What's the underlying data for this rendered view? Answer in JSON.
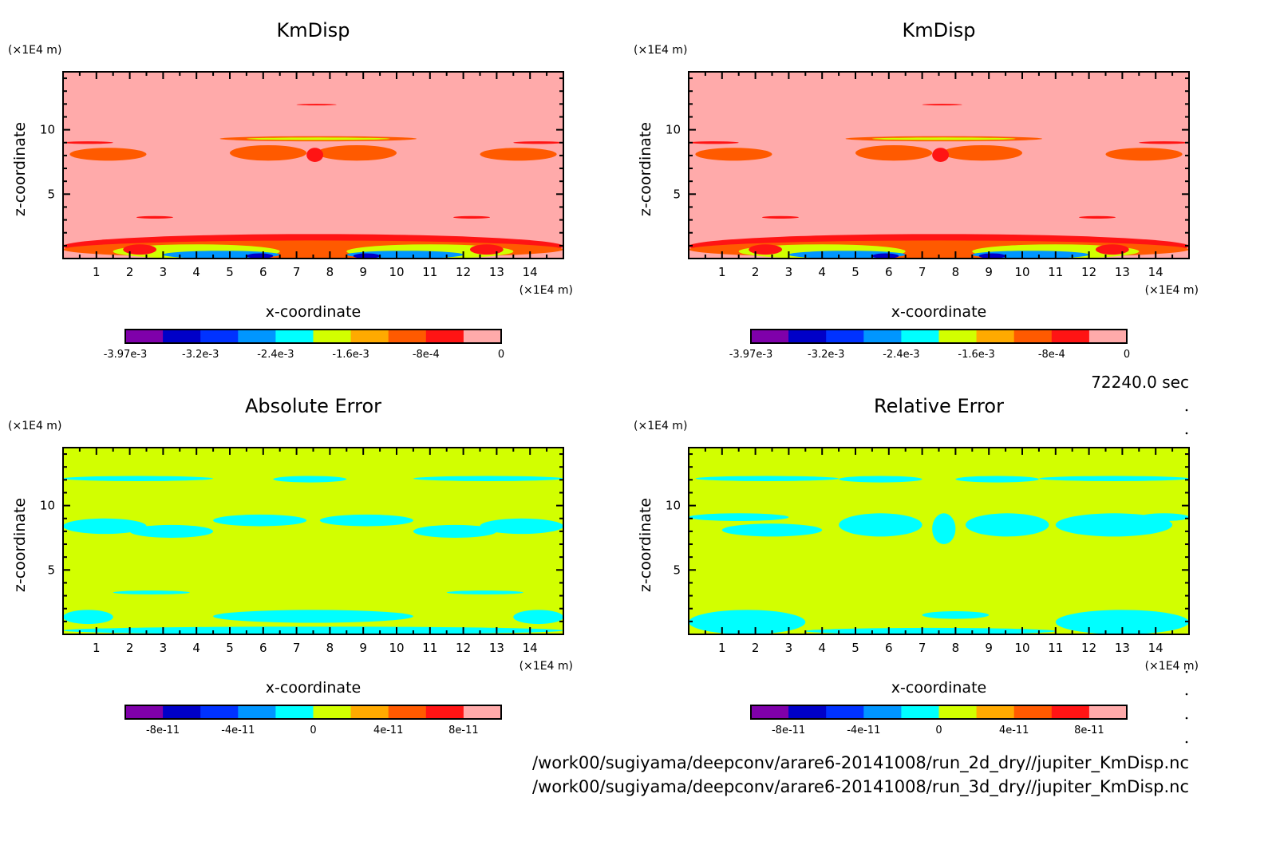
{
  "time_label": "72240.0 sec",
  "file_paths": [
    "/work00/sugiyama/deepconv/arare6-20141008/run_2d_dry//jupiter_KmDisp.nc",
    "/work00/sugiyama/deepconv/arare6-20141008/run_3d_dry//jupiter_KmDisp.nc"
  ],
  "colormap": [
    "#7f00aa",
    "#0000c8",
    "#0032ff",
    "#0096ff",
    "#00ffff",
    "#d2ff00",
    "#ffaa00",
    "#ff5a00",
    "#ff1414",
    "#ffaaaa"
  ],
  "chart_data": [
    {
      "type": "heatmap",
      "id": "kmdisp-2d",
      "title": "KmDisp",
      "xlabel": "x-coordinate",
      "ylabel": "z-coordinate",
      "x_unit": "(×1E4 m)",
      "y_unit": "(×1E4 m)",
      "xlim": [
        0,
        15
      ],
      "ylim": [
        0,
        14.5
      ],
      "xticks": [
        "1",
        "2",
        "3",
        "4",
        "5",
        "6",
        "7",
        "8",
        "9",
        "10",
        "11",
        "12",
        "13",
        "14"
      ],
      "yticks": [
        "5",
        "10"
      ],
      "colorbar_labels": [
        "-3.97e-3",
        "-3.2e-3",
        "-2.4e-3",
        "-1.6e-3",
        "-8e-4",
        "0"
      ],
      "colorbar_range": [
        -0.00397,
        0
      ],
      "background_level": 9,
      "features": [
        {
          "x": [
            7.0,
            8.2
          ],
          "z": [
            11.9,
            12.0
          ],
          "level": 8
        },
        {
          "x": [
            0.0,
            1.5
          ],
          "z": [
            8.9,
            9.1
          ],
          "level": 8
        },
        {
          "x": [
            13.5,
            15.0
          ],
          "z": [
            8.9,
            9.1
          ],
          "level": 8
        },
        {
          "x": [
            4.7,
            10.6
          ],
          "z": [
            9.1,
            9.5
          ],
          "level": 7
        },
        {
          "x": [
            5.5,
            9.8
          ],
          "z": [
            9.2,
            9.4
          ],
          "level": 5
        },
        {
          "x": [
            0.2,
            2.5
          ],
          "z": [
            7.6,
            8.6
          ],
          "level": 7
        },
        {
          "x": [
            12.5,
            14.8
          ],
          "z": [
            7.6,
            8.6
          ],
          "level": 7
        },
        {
          "x": [
            5.0,
            7.3
          ],
          "z": [
            7.6,
            8.8
          ],
          "level": 7
        },
        {
          "x": [
            7.6,
            10.0
          ],
          "z": [
            7.6,
            8.8
          ],
          "level": 7
        },
        {
          "x": [
            7.3,
            7.8
          ],
          "z": [
            7.5,
            8.6
          ],
          "level": 8
        },
        {
          "x": [
            2.2,
            3.3
          ],
          "z": [
            3.1,
            3.3
          ],
          "level": 8
        },
        {
          "x": [
            11.7,
            12.8
          ],
          "z": [
            3.1,
            3.3
          ],
          "level": 8
        },
        {
          "x": [
            0.0,
            15.0
          ],
          "z": [
            0.0,
            1.9
          ],
          "level": 8
        },
        {
          "x": [
            0.0,
            15.0
          ],
          "z": [
            0.0,
            1.4
          ],
          "level": 7
        },
        {
          "x": [
            1.5,
            6.5
          ],
          "z": [
            0.0,
            1.1
          ],
          "level": 5
        },
        {
          "x": [
            8.5,
            13.5
          ],
          "z": [
            0.0,
            1.1
          ],
          "level": 5
        },
        {
          "x": [
            1.8,
            2.8
          ],
          "z": [
            0.3,
            1.1
          ],
          "level": 8
        },
        {
          "x": [
            12.2,
            13.2
          ],
          "z": [
            0.3,
            1.1
          ],
          "level": 8
        },
        {
          "x": [
            3.0,
            6.5
          ],
          "z": [
            0.0,
            0.6
          ],
          "level": 3
        },
        {
          "x": [
            8.5,
            12.0
          ],
          "z": [
            0.0,
            0.6
          ],
          "level": 3
        },
        {
          "x": [
            5.5,
            6.3
          ],
          "z": [
            0.0,
            0.4
          ],
          "level": 1
        },
        {
          "x": [
            8.7,
            9.5
          ],
          "z": [
            0.0,
            0.4
          ],
          "level": 1
        }
      ]
    },
    {
      "type": "heatmap",
      "id": "kmdisp-3d",
      "title": "KmDisp",
      "xlabel": "x-coordinate",
      "ylabel": "z-coordinate",
      "x_unit": "(×1E4 m)",
      "y_unit": "(×1E4 m)",
      "xlim": [
        0,
        15
      ],
      "ylim": [
        0,
        14.5
      ],
      "xticks": [
        "1",
        "2",
        "3",
        "4",
        "5",
        "6",
        "7",
        "8",
        "9",
        "10",
        "11",
        "12",
        "13",
        "14"
      ],
      "yticks": [
        "5",
        "10"
      ],
      "colorbar_labels": [
        "-3.97e-3",
        "-3.2e-3",
        "-2.4e-3",
        "-1.6e-3",
        "-8e-4",
        "0"
      ],
      "colorbar_range": [
        -0.00397,
        0
      ],
      "background_level": 9,
      "features": [
        {
          "x": [
            7.0,
            8.2
          ],
          "z": [
            11.9,
            12.0
          ],
          "level": 8
        },
        {
          "x": [
            0.0,
            1.5
          ],
          "z": [
            8.9,
            9.1
          ],
          "level": 8
        },
        {
          "x": [
            13.5,
            15.0
          ],
          "z": [
            8.9,
            9.1
          ],
          "level": 8
        },
        {
          "x": [
            4.7,
            10.6
          ],
          "z": [
            9.1,
            9.5
          ],
          "level": 7
        },
        {
          "x": [
            5.5,
            9.8
          ],
          "z": [
            9.2,
            9.4
          ],
          "level": 5
        },
        {
          "x": [
            0.2,
            2.5
          ],
          "z": [
            7.6,
            8.6
          ],
          "level": 7
        },
        {
          "x": [
            12.5,
            14.8
          ],
          "z": [
            7.6,
            8.6
          ],
          "level": 7
        },
        {
          "x": [
            5.0,
            7.3
          ],
          "z": [
            7.6,
            8.8
          ],
          "level": 7
        },
        {
          "x": [
            7.6,
            10.0
          ],
          "z": [
            7.6,
            8.8
          ],
          "level": 7
        },
        {
          "x": [
            7.3,
            7.8
          ],
          "z": [
            7.5,
            8.6
          ],
          "level": 8
        },
        {
          "x": [
            2.2,
            3.3
          ],
          "z": [
            3.1,
            3.3
          ],
          "level": 8
        },
        {
          "x": [
            11.7,
            12.8
          ],
          "z": [
            3.1,
            3.3
          ],
          "level": 8
        },
        {
          "x": [
            0.0,
            15.0
          ],
          "z": [
            0.0,
            1.9
          ],
          "level": 8
        },
        {
          "x": [
            0.0,
            15.0
          ],
          "z": [
            0.0,
            1.4
          ],
          "level": 7
        },
        {
          "x": [
            1.5,
            6.5
          ],
          "z": [
            0.0,
            1.1
          ],
          "level": 5
        },
        {
          "x": [
            8.5,
            13.5
          ],
          "z": [
            0.0,
            1.1
          ],
          "level": 5
        },
        {
          "x": [
            1.8,
            2.8
          ],
          "z": [
            0.3,
            1.1
          ],
          "level": 8
        },
        {
          "x": [
            12.2,
            13.2
          ],
          "z": [
            0.3,
            1.1
          ],
          "level": 8
        },
        {
          "x": [
            3.0,
            6.5
          ],
          "z": [
            0.0,
            0.6
          ],
          "level": 3
        },
        {
          "x": [
            8.5,
            12.0
          ],
          "z": [
            0.0,
            0.6
          ],
          "level": 3
        },
        {
          "x": [
            5.5,
            6.3
          ],
          "z": [
            0.0,
            0.4
          ],
          "level": 1
        },
        {
          "x": [
            8.7,
            9.5
          ],
          "z": [
            0.0,
            0.4
          ],
          "level": 1
        }
      ]
    },
    {
      "type": "heatmap",
      "id": "absolute-error",
      "title": "Absolute Error",
      "xlabel": "x-coordinate",
      "ylabel": "z-coordinate",
      "x_unit": "(×1E4 m)",
      "y_unit": "(×1E4 m)",
      "xlim": [
        0,
        15
      ],
      "ylim": [
        0,
        14.5
      ],
      "xticks": [
        "1",
        "2",
        "3",
        "4",
        "5",
        "6",
        "7",
        "8",
        "9",
        "10",
        "11",
        "12",
        "13",
        "14"
      ],
      "yticks": [
        "5",
        "10"
      ],
      "colorbar_labels": [
        "-8e-11",
        "-4e-11",
        "0",
        "4e-11",
        "8e-11"
      ],
      "colorbar_range": [
        -1e-10,
        1e-10
      ],
      "background_level": 5,
      "features": [
        {
          "x": [
            0.0,
            4.5
          ],
          "z": [
            11.9,
            12.3
          ],
          "level": 4
        },
        {
          "x": [
            6.3,
            8.5
          ],
          "z": [
            11.8,
            12.3
          ],
          "level": 4
        },
        {
          "x": [
            10.5,
            15.0
          ],
          "z": [
            11.9,
            12.3
          ],
          "level": 4
        },
        {
          "x": [
            0.0,
            2.5
          ],
          "z": [
            7.8,
            9.0
          ],
          "level": 4
        },
        {
          "x": [
            2.0,
            4.5
          ],
          "z": [
            7.5,
            8.5
          ],
          "level": 4
        },
        {
          "x": [
            4.5,
            7.3
          ],
          "z": [
            8.4,
            9.3
          ],
          "level": 4
        },
        {
          "x": [
            7.7,
            10.5
          ],
          "z": [
            8.4,
            9.3
          ],
          "level": 4
        },
        {
          "x": [
            10.5,
            13.0
          ],
          "z": [
            7.5,
            8.5
          ],
          "level": 4
        },
        {
          "x": [
            12.5,
            15.0
          ],
          "z": [
            7.8,
            9.0
          ],
          "level": 4
        },
        {
          "x": [
            1.5,
            3.8
          ],
          "z": [
            3.1,
            3.4
          ],
          "level": 4
        },
        {
          "x": [
            11.5,
            13.8
          ],
          "z": [
            3.1,
            3.4
          ],
          "level": 4
        },
        {
          "x": [
            0.0,
            15.0
          ],
          "z": [
            0.0,
            0.6
          ],
          "level": 4
        },
        {
          "x": [
            0.0,
            1.5
          ],
          "z": [
            0.8,
            1.9
          ],
          "level": 4
        },
        {
          "x": [
            4.5,
            10.5
          ],
          "z": [
            0.9,
            1.9
          ],
          "level": 4
        },
        {
          "x": [
            13.5,
            15.0
          ],
          "z": [
            0.8,
            1.9
          ],
          "level": 4
        }
      ]
    },
    {
      "type": "heatmap",
      "id": "relative-error",
      "title": "Relative Error",
      "xlabel": "x-coordinate",
      "ylabel": "z-coordinate",
      "x_unit": "(×1E4 m)",
      "y_unit": "(×1E4 m)",
      "xlim": [
        0,
        15
      ],
      "ylim": [
        0,
        14.5
      ],
      "xticks": [
        "1",
        "2",
        "3",
        "4",
        "5",
        "6",
        "7",
        "8",
        "9",
        "10",
        "11",
        "12",
        "13",
        "14"
      ],
      "yticks": [
        "5",
        "10"
      ],
      "colorbar_labels": [
        "-8e-11",
        "-4e-11",
        "0",
        "4e-11",
        "8e-11"
      ],
      "colorbar_range": [
        -1e-10,
        1e-10
      ],
      "background_level": 5,
      "features": [
        {
          "x": [
            0.2,
            4.5
          ],
          "z": [
            11.9,
            12.3
          ],
          "level": 4
        },
        {
          "x": [
            4.5,
            7.0
          ],
          "z": [
            11.8,
            12.3
          ],
          "level": 4
        },
        {
          "x": [
            8.0,
            10.5
          ],
          "z": [
            11.8,
            12.3
          ],
          "level": 4
        },
        {
          "x": [
            10.5,
            15.0
          ],
          "z": [
            11.9,
            12.3
          ],
          "level": 4
        },
        {
          "x": [
            0.0,
            3.0
          ],
          "z": [
            8.8,
            9.4
          ],
          "level": 4
        },
        {
          "x": [
            1.0,
            4.0
          ],
          "z": [
            7.6,
            8.6
          ],
          "level": 4
        },
        {
          "x": [
            4.5,
            7.0
          ],
          "z": [
            7.6,
            9.4
          ],
          "level": 4
        },
        {
          "x": [
            7.3,
            8.0
          ],
          "z": [
            7.0,
            9.4
          ],
          "level": 4
        },
        {
          "x": [
            8.3,
            10.8
          ],
          "z": [
            7.6,
            9.4
          ],
          "level": 4
        },
        {
          "x": [
            11.0,
            14.5
          ],
          "z": [
            7.6,
            9.4
          ],
          "level": 4
        },
        {
          "x": [
            13.5,
            15.0
          ],
          "z": [
            8.8,
            9.4
          ],
          "level": 4
        },
        {
          "x": [
            0.0,
            3.5
          ],
          "z": [
            0.0,
            1.9
          ],
          "level": 4
        },
        {
          "x": [
            3.5,
            11.0
          ],
          "z": [
            0.0,
            0.5
          ],
          "level": 4
        },
        {
          "x": [
            7.0,
            9.0
          ],
          "z": [
            1.2,
            1.8
          ],
          "level": 4
        },
        {
          "x": [
            11.0,
            15.0
          ],
          "z": [
            0.0,
            1.9
          ],
          "level": 4
        }
      ]
    }
  ]
}
